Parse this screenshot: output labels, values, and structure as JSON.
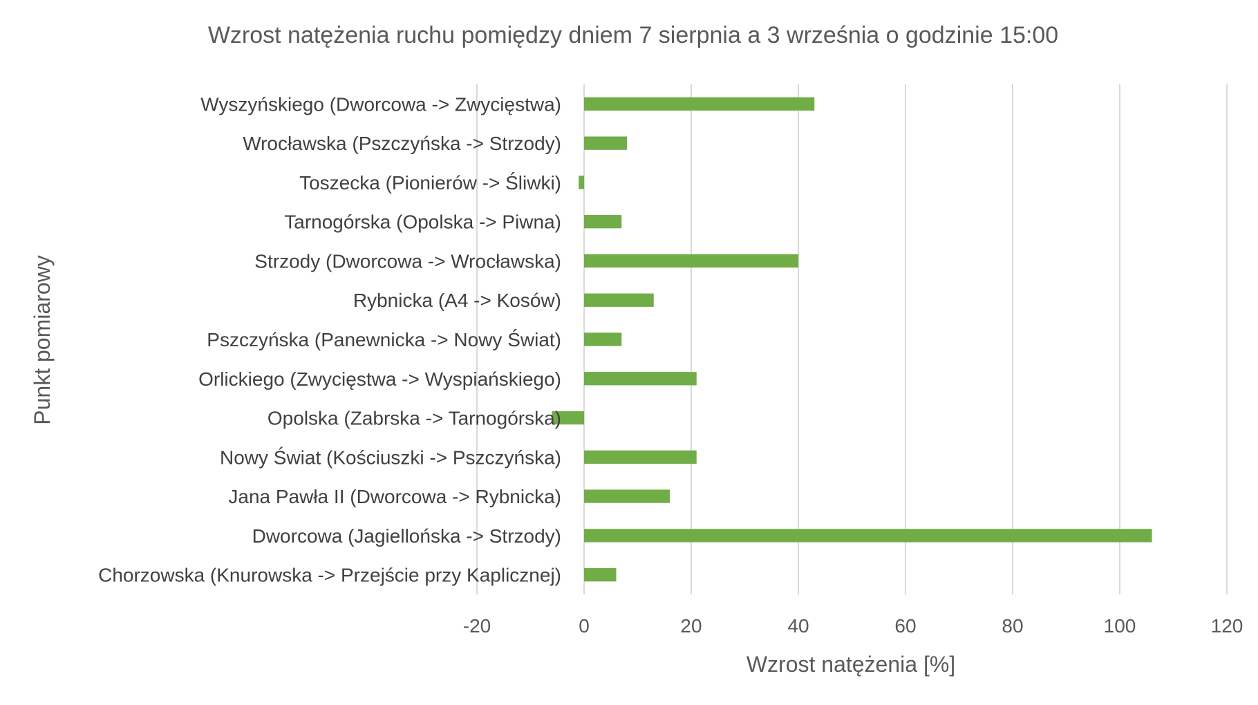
{
  "chart_data": {
    "type": "bar",
    "orientation": "horizontal",
    "title": "Wzrost natężenia ruchu pomiędzy dniem 7 sierpnia a 3 września o godzinie 15:00",
    "xlabel": "Wzrost natężenia [%]",
    "ylabel": "Punkt pomiarowy",
    "xlim": [
      -20,
      120
    ],
    "xticks": [
      -20,
      0,
      20,
      40,
      60,
      80,
      100,
      120
    ],
    "grid": true,
    "legend": "none",
    "bar_color": "#70ad47",
    "categories": [
      "Wyszyńskiego (Dworcowa -> Zwycięstwa)",
      "Wrocławska (Pszczyńska -> Strzody)",
      "Toszecka (Pionierów -> Śliwki)",
      "Tarnogórska (Opolska -> Piwna)",
      "Strzody (Dworcowa -> Wrocławska)",
      "Rybnicka (A4 -> Kosów)",
      "Pszczyńska (Panewnicka -> Nowy Świat)",
      "Orlickiego (Zwycięstwa -> Wyspiańskiego)",
      "Opolska (Zabrska -> Tarnogórska)",
      "Nowy Świat (Kościuszki -> Pszczyńska)",
      "Jana Pawła II (Dworcowa -> Rybnicka)",
      "Dworcowa (Jagiellońska -> Strzody)",
      "Chorzowska (Knurowska -> Przejście przy Kaplicznej)"
    ],
    "values": [
      43,
      8,
      -1,
      7,
      40,
      13,
      7,
      21,
      -6,
      21,
      16,
      106,
      6
    ]
  }
}
